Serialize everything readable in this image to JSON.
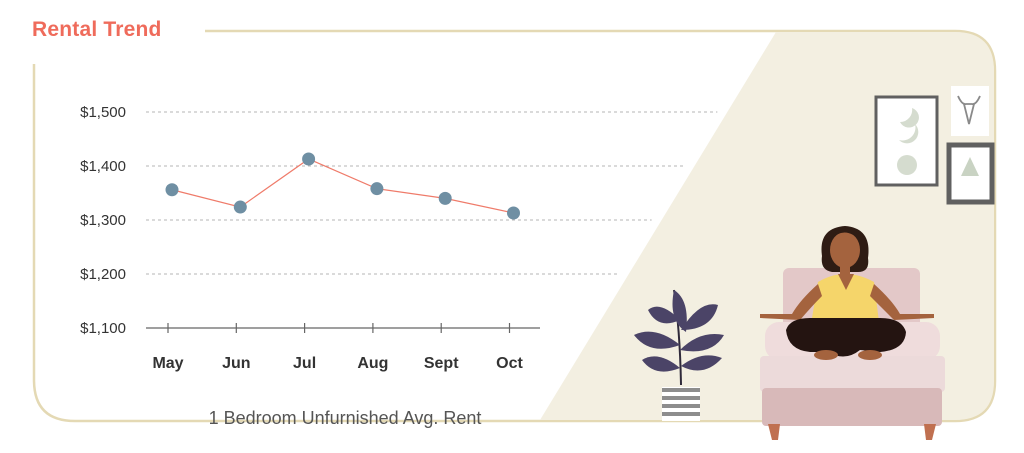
{
  "header": {
    "title": "Rental Trend"
  },
  "caption": "1 Bedroom Unfurnished Avg. Rent",
  "colors": {
    "accent": "#ef6b5b",
    "frame": "#e4d9b4",
    "marker": "#6f8fa3",
    "line": "#ef7b6a",
    "panel": "#f3efe1"
  },
  "chart_data": {
    "type": "line",
    "categories": [
      "May",
      "Jun",
      "Jul",
      "Aug",
      "Sept",
      "Oct"
    ],
    "series": [
      {
        "values": [
          1356,
          1324,
          1413,
          1358,
          1340,
          1313
        ]
      }
    ],
    "yticks": [
      1100,
      1200,
      1300,
      1400,
      1500
    ],
    "ytick_labels": [
      "$1,100",
      "$1,200",
      "$1,300",
      "$1,400",
      "$1,500"
    ],
    "ylim": [
      1100,
      1500
    ],
    "grid": true,
    "xlabel": "1 Bedroom Unfurnished Avg. Rent",
    "ylabel": "",
    "title": "Rental Trend"
  },
  "illustration": {
    "scene": "woman meditating on armchair",
    "items": [
      "moon-phases-frame",
      "bull-skull-frame",
      "mountain-frame",
      "potted-plant",
      "armchair"
    ]
  }
}
